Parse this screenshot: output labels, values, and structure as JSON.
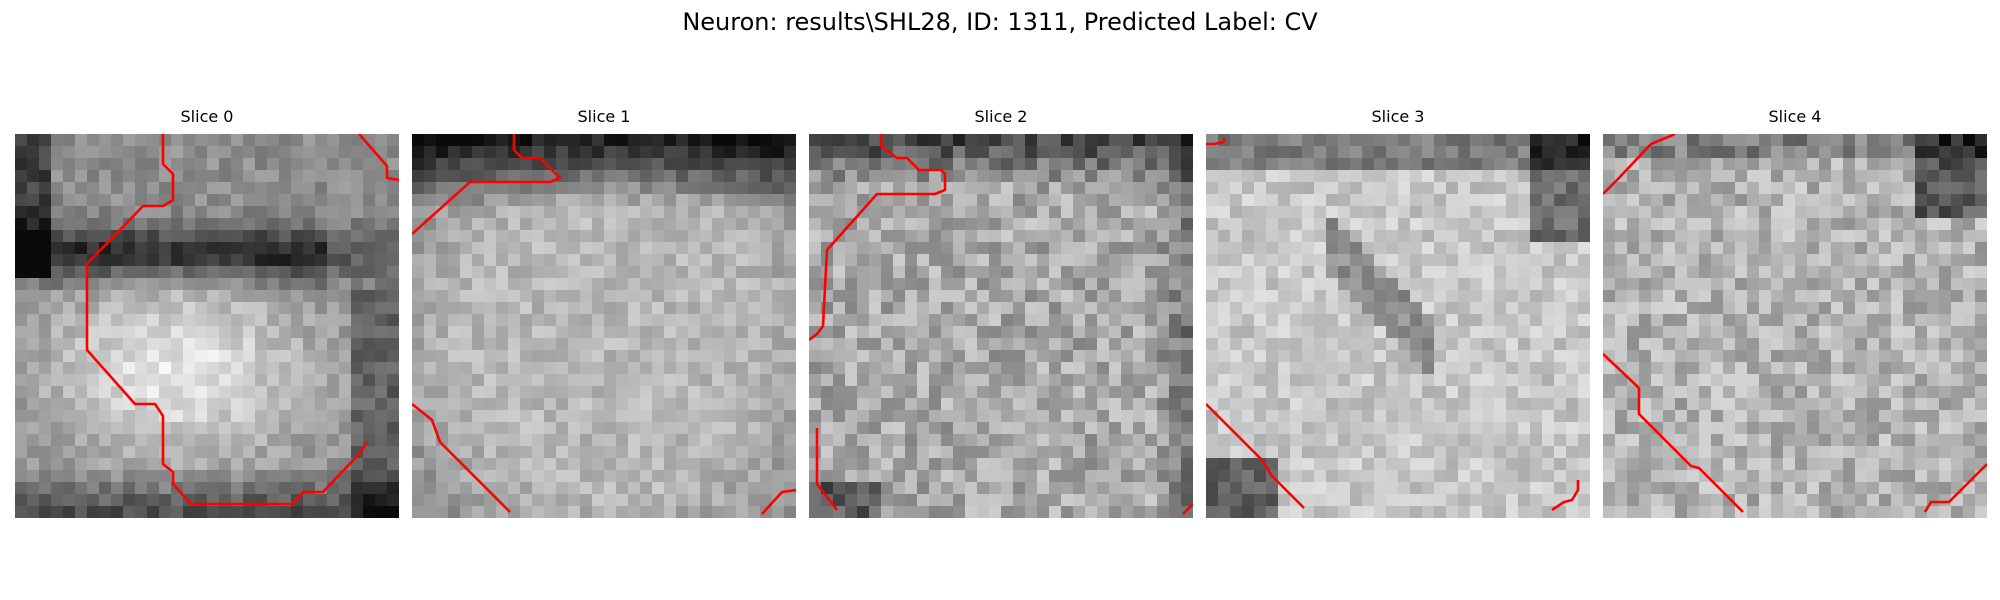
{
  "suptitle": "Neuron: results\\SHL28, ID: 1311, Predicted Label: CV",
  "contour_color": "#ff0000",
  "slices": [
    {
      "title": "Slice 0"
    },
    {
      "title": "Slice 1"
    },
    {
      "title": "Slice 2"
    },
    {
      "title": "Slice 3"
    },
    {
      "title": "Slice 4"
    }
  ]
}
